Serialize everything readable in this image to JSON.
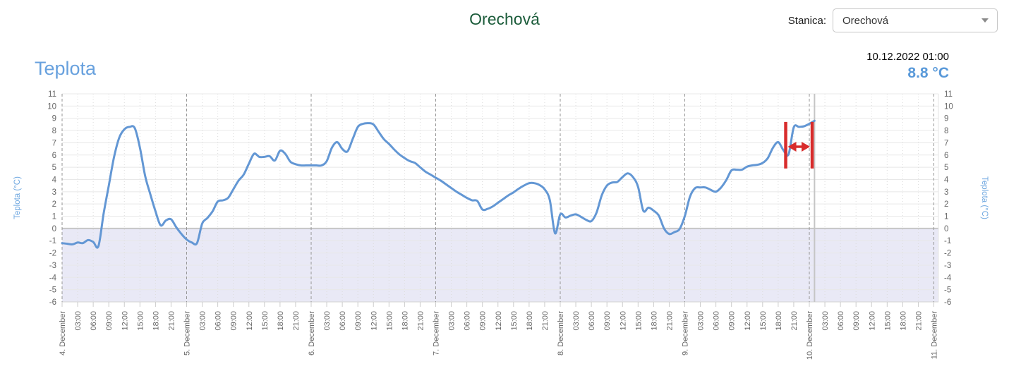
{
  "header": {
    "title": "Orechová",
    "station_label": "Stanica:",
    "station_value": "Orechová"
  },
  "reading": {
    "timestamp": "10.12.2022 01:00",
    "value": "8.8 °C"
  },
  "colors": {
    "title_green": "#1c5c3b",
    "heading_blue": "#68a1de",
    "value_blue": "#5999d9",
    "line_blue": "#6397d4",
    "annotation_red": "#d82c2c",
    "below_zero_band": "#e9e9f6"
  },
  "chart_data": {
    "type": "line",
    "heading": "Teplota",
    "y_axis": {
      "label": "Teplota (°C)",
      "min": -6,
      "max": 11,
      "tick_step": 1
    },
    "x_axis": {
      "days_total": 7,
      "day_labels": [
        "4. December",
        "5. December",
        "6. December",
        "7. December",
        "8. December",
        "9. December",
        "10. December",
        "11. December"
      ],
      "time_labels": [
        "03:00",
        "06:00",
        "09:00",
        "12:00",
        "15:00",
        "18:00",
        "21:00"
      ],
      "minor_tick_hours": 3
    },
    "grid": {
      "legend": "off",
      "horizontal": "on",
      "vertical_minor": "dotted",
      "day_boundary": "dashed"
    },
    "below_zero_band": {
      "from": -6,
      "to": 0,
      "color": "#e9e9f6"
    },
    "now_marker_hour": 145,
    "annotation": {
      "kind": "horizontal-span-arrow",
      "color": "#d82c2c",
      "from_hour": 139.45,
      "to_hour": 144.55,
      "top_value": 8.7,
      "bottom_value": 4.9,
      "arrow_value": 6.68
    },
    "series": [
      {
        "name": "Teplota",
        "unit": "°C",
        "color": "#6397d4",
        "start_label": "4. December 00:00",
        "end_label": "10. December 01:00",
        "step_hours": 1,
        "values": [
          -1.2,
          -1.25,
          -1.3,
          -1.15,
          -1.2,
          -0.95,
          -1.1,
          -1.45,
          1.2,
          3.5,
          5.8,
          7.4,
          8.1,
          8.3,
          8.2,
          6.6,
          4.3,
          2.8,
          1.4,
          0.25,
          0.65,
          0.75,
          0.1,
          -0.45,
          -0.9,
          -1.15,
          -1.2,
          0.4,
          0.85,
          1.4,
          2.2,
          2.3,
          2.5,
          3.2,
          3.9,
          4.4,
          5.3,
          6.1,
          5.85,
          5.85,
          5.9,
          5.55,
          6.35,
          6.1,
          5.45,
          5.25,
          5.15,
          5.15,
          5.15,
          5.15,
          5.15,
          5.5,
          6.6,
          7.05,
          6.5,
          6.3,
          7.3,
          8.3,
          8.55,
          8.6,
          8.5,
          7.9,
          7.3,
          6.9,
          6.45,
          6.05,
          5.75,
          5.5,
          5.35,
          5.0,
          4.65,
          4.4,
          4.15,
          3.9,
          3.6,
          3.3,
          3.0,
          2.75,
          2.5,
          2.3,
          2.25,
          1.55,
          1.6,
          1.8,
          2.1,
          2.4,
          2.7,
          2.95,
          3.25,
          3.5,
          3.7,
          3.7,
          3.55,
          3.2,
          2.3,
          -0.4,
          1.15,
          0.9,
          1.05,
          1.15,
          0.95,
          0.7,
          0.6,
          1.3,
          2.7,
          3.5,
          3.75,
          3.8,
          4.2,
          4.5,
          4.2,
          3.4,
          1.45,
          1.7,
          1.45,
          1.05,
          0.0,
          -0.45,
          -0.3,
          -0.05,
          1.0,
          2.6,
          3.3,
          3.35,
          3.35,
          3.15,
          3.0,
          3.35,
          3.95,
          4.75,
          4.8,
          4.8,
          5.05,
          5.15,
          5.2,
          5.35,
          5.75,
          6.6,
          7.05,
          6.4,
          6.05,
          8.25,
          8.3,
          8.35,
          8.55,
          8.8
        ]
      }
    ]
  }
}
